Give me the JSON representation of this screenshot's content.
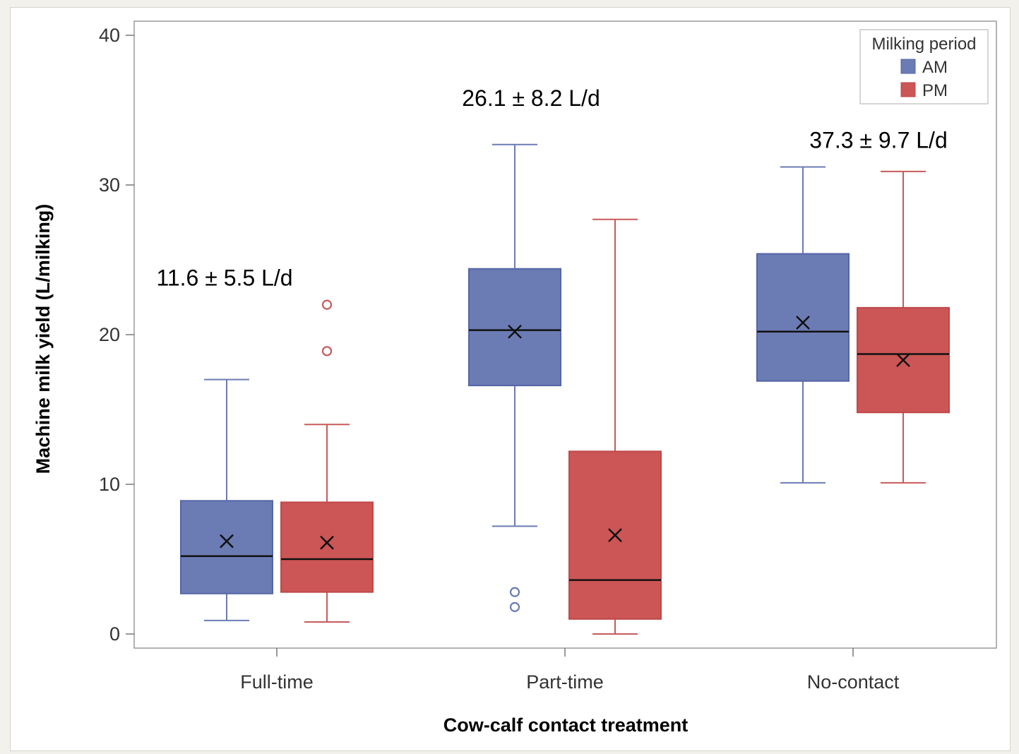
{
  "chart_data": {
    "type": "box",
    "xlabel": "Cow-calf contact treatment",
    "ylabel": "Machine milk yield (L/milking)",
    "ylim": [
      0,
      40
    ],
    "yticks": [
      0,
      10,
      20,
      30,
      40
    ],
    "categories": [
      "Full-time",
      "Part-time",
      "No-contact"
    ],
    "legend": {
      "title": "Milking period",
      "position": "top-right",
      "entries": [
        {
          "label": "AM",
          "color": "#6b7bb3"
        },
        {
          "label": "PM",
          "color": "#cc5555"
        }
      ]
    },
    "series": [
      {
        "name": "AM",
        "color": "#6b7bb3",
        "boxes": [
          {
            "category": "Full-time",
            "min": 0.9,
            "q1": 2.7,
            "median": 5.2,
            "q3": 8.9,
            "max": 17.0,
            "mean": 6.2,
            "outliers": []
          },
          {
            "category": "Part-time",
            "min": 7.2,
            "q1": 16.6,
            "median": 20.3,
            "q3": 24.4,
            "max": 32.7,
            "mean": 20.2,
            "outliers": [
              2.8,
              1.8
            ]
          },
          {
            "category": "No-contact",
            "min": 10.1,
            "q1": 16.9,
            "median": 20.2,
            "q3": 25.4,
            "max": 31.2,
            "mean": 20.8,
            "outliers": []
          }
        ]
      },
      {
        "name": "PM",
        "color": "#cc5555",
        "boxes": [
          {
            "category": "Full-time",
            "min": 0.8,
            "q1": 2.8,
            "median": 5.0,
            "q3": 8.8,
            "max": 14.0,
            "mean": 6.1,
            "outliers": [
              22.0,
              18.9
            ]
          },
          {
            "category": "Part-time",
            "min": 0.0,
            "q1": 1.0,
            "median": 3.6,
            "q3": 12.2,
            "max": 27.7,
            "mean": 6.6,
            "outliers": []
          },
          {
            "category": "No-contact",
            "min": 10.1,
            "q1": 14.8,
            "median": 18.7,
            "q3": 21.8,
            "max": 30.9,
            "mean": 18.3,
            "outliers": []
          }
        ]
      }
    ],
    "annotations": [
      {
        "category": "Full-time",
        "text": "11.6 ± 5.5 L/d",
        "y": 23.8
      },
      {
        "category": "Part-time",
        "text": "26.1 ± 8.2 L/d",
        "y": 35.8
      },
      {
        "category": "No-contact",
        "text": "37.3 ± 9.7 L/d",
        "y": 33.0
      }
    ]
  }
}
